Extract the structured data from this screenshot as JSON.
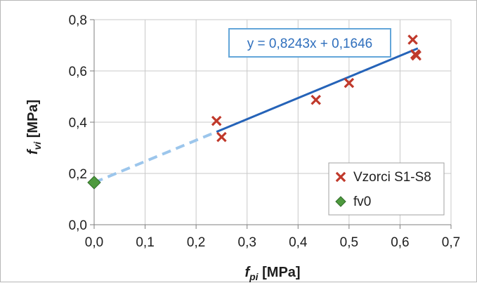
{
  "chart_data": {
    "type": "scatter",
    "xlabel_main": "f",
    "xlabel_sub": "pi",
    "xlabel_unit": " [MPa]",
    "ylabel_main": "f",
    "ylabel_sub": "vi",
    "ylabel_unit": " [MPa]",
    "xlim": [
      0.0,
      0.7
    ],
    "ylim": [
      0.0,
      0.8
    ],
    "x_ticks": [
      "0,0",
      "0,1",
      "0,2",
      "0,3",
      "0,4",
      "0,5",
      "0,6",
      "0,7"
    ],
    "y_ticks": [
      "0,0",
      "0,2",
      "0,4",
      "0,6",
      "0,8"
    ],
    "grid": true,
    "legend_position": "bottom-right",
    "series": [
      {
        "name": "Vzorci S1-S8",
        "marker": "x",
        "color": "#c0392b",
        "points": [
          [
            0.24,
            0.405
          ],
          [
            0.25,
            0.342
          ],
          [
            0.435,
            0.487
          ],
          [
            0.5,
            0.553
          ],
          [
            0.625,
            0.722
          ],
          [
            0.63,
            0.665
          ],
          [
            0.632,
            0.66
          ]
        ]
      },
      {
        "name": "fv0",
        "marker": "diamond",
        "color": "#4e9a3e",
        "points": [
          [
            0.0,
            0.1646
          ]
        ]
      }
    ],
    "trendline": {
      "label": "y = 0,8243x + 0,1646",
      "slope": 0.8243,
      "intercept": 0.1646,
      "solid_range": [
        0.24,
        0.635
      ],
      "dashed_range": [
        0.0,
        0.24
      ],
      "solid_color": "#2563b8",
      "dashed_color": "#9cc6ec"
    }
  }
}
